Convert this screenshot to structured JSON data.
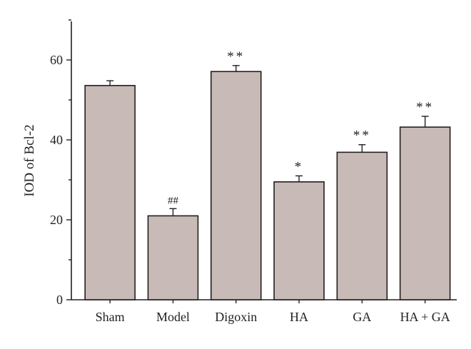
{
  "chart_data": {
    "type": "bar",
    "title": "",
    "xlabel": "",
    "ylabel": "IOD of Bcl-2",
    "ylim": [
      0,
      70
    ],
    "yticks": [
      0,
      20,
      40,
      60
    ],
    "categories": [
      "Sham",
      "Model",
      "Digoxin",
      "HA",
      "GA",
      "HA + GA"
    ],
    "values": [
      53.6,
      21.0,
      57.1,
      29.5,
      36.9,
      43.2
    ],
    "errors": [
      1.2,
      1.8,
      1.5,
      1.5,
      1.9,
      2.7
    ],
    "annotations": [
      "",
      "##",
      "**",
      "*",
      "**",
      "**"
    ],
    "colors": {
      "bar_fill": "#c8bab6",
      "stroke": "#231f20"
    },
    "grid": false,
    "legend": "none"
  }
}
